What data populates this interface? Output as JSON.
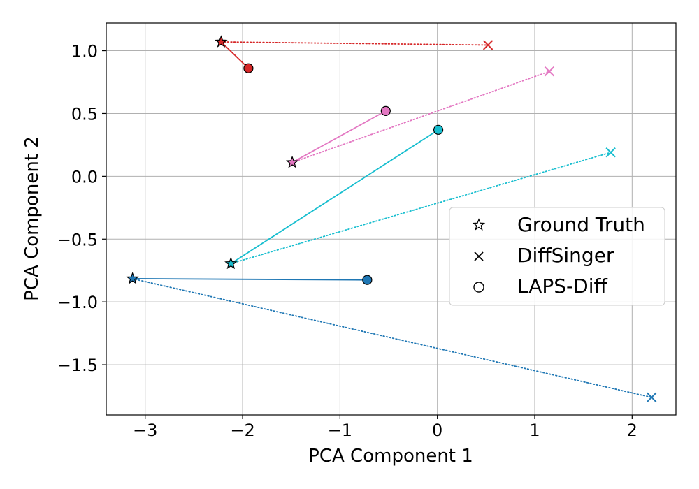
{
  "chart_data": {
    "type": "scatter",
    "title": "",
    "xlabel": "PCA Component 1",
    "ylabel": "PCA Component 2",
    "xlim": [
      -3.4,
      2.45
    ],
    "ylim": [
      -1.9,
      1.22
    ],
    "x_ticks": [
      -3,
      -2,
      -1,
      0,
      1,
      2
    ],
    "x_tick_labels": [
      "−3",
      "−2",
      "−1",
      "0",
      "1",
      "2"
    ],
    "y_ticks": [
      -1.5,
      -1.0,
      -0.5,
      0.0,
      0.5,
      1.0
    ],
    "y_tick_labels": [
      "−1.5",
      "−1.0",
      "−0.5",
      "0.0",
      "0.5",
      "1.0"
    ],
    "grid": true,
    "legend_position": "center-right",
    "legend": [
      {
        "label": "Ground Truth",
        "marker": "star"
      },
      {
        "label": "DiffSinger",
        "marker": "x"
      },
      {
        "label": "LAPS-Diff",
        "marker": "circle"
      }
    ],
    "series": [
      {
        "name": "red",
        "color": "#d62728",
        "ground_truth": [
          -2.22,
          1.07
        ],
        "diffsinger": [
          0.52,
          1.045
        ],
        "laps_diff": [
          -1.94,
          0.86
        ]
      },
      {
        "name": "pink",
        "color": "#e377c2",
        "ground_truth": [
          -1.49,
          0.11
        ],
        "diffsinger": [
          1.15,
          0.835
        ],
        "laps_diff": [
          -0.53,
          0.52
        ]
      },
      {
        "name": "cyan",
        "color": "#17becf",
        "ground_truth": [
          -2.12,
          -0.695
        ],
        "diffsinger": [
          1.78,
          0.19
        ],
        "laps_diff": [
          0.01,
          0.37
        ]
      },
      {
        "name": "blue",
        "color": "#1f77b4",
        "ground_truth": [
          -3.13,
          -0.815
        ],
        "diffsinger": [
          2.2,
          -1.76
        ],
        "laps_diff": [
          -0.72,
          -0.825
        ]
      }
    ]
  }
}
